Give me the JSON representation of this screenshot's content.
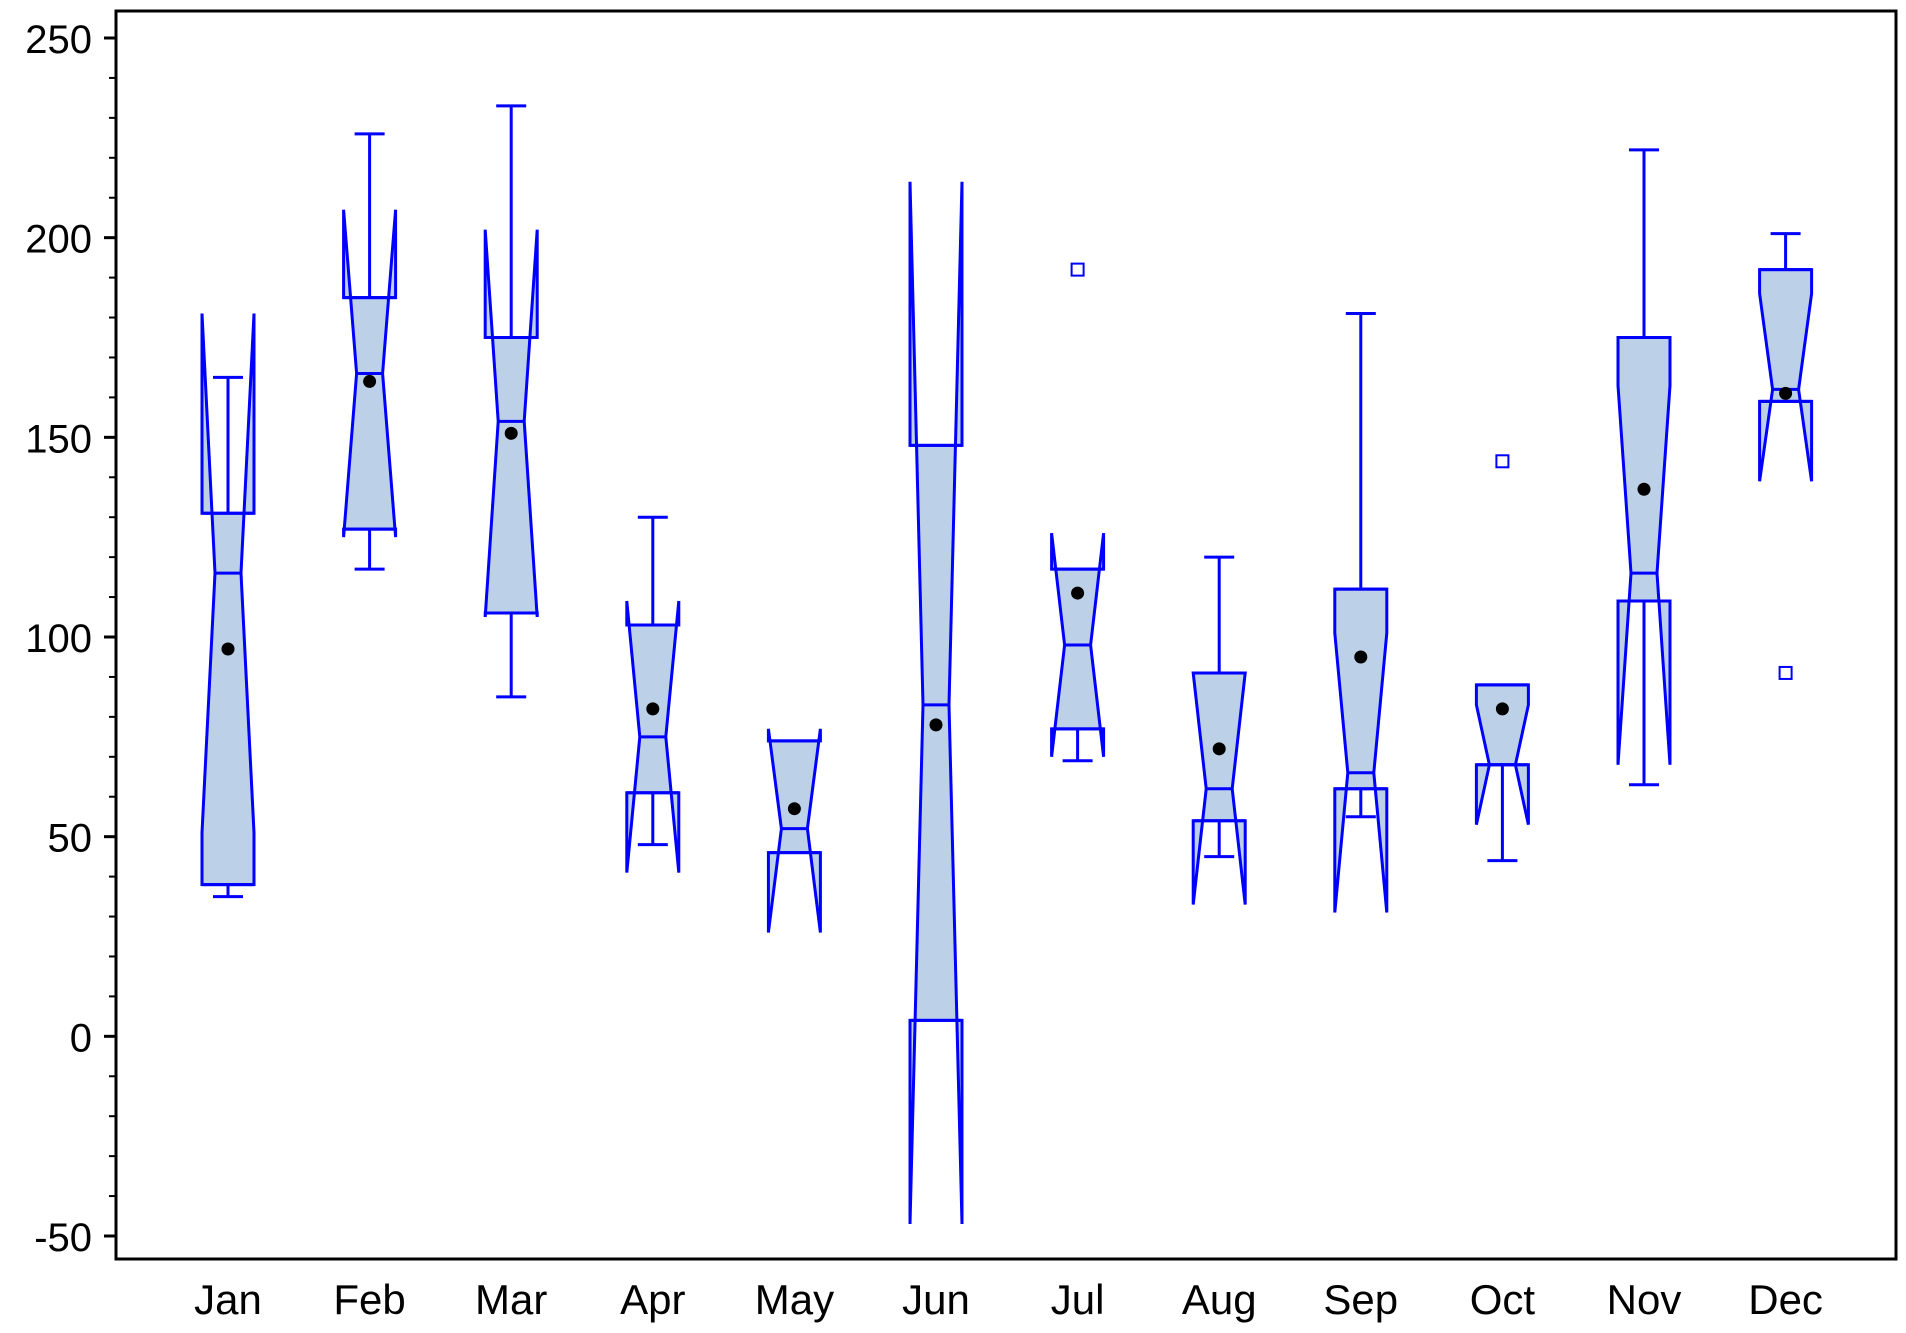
{
  "chart_data": {
    "type": "box",
    "title": "",
    "xlabel": "",
    "ylabel": "",
    "ylim": [
      -50,
      250
    ],
    "yticks": [
      -50,
      0,
      50,
      100,
      150,
      200,
      250
    ],
    "yticks_labels": [
      "-50",
      "0",
      "50",
      "100",
      "150",
      "200",
      "250"
    ],
    "minor_tick_step": 10,
    "grid": false,
    "categories": [
      "Jan",
      "Feb",
      "Mar",
      "Apr",
      "May",
      "Jun",
      "Jul",
      "Aug",
      "Sep",
      "Oct",
      "Nov",
      "Dec"
    ],
    "boxes": [
      {
        "min": 35,
        "q1": 38,
        "median": 116,
        "q3": 131,
        "max": 165,
        "mean": 97,
        "notch_lo": 51,
        "notch_hi": 181,
        "outliers": []
      },
      {
        "min": 117,
        "q1": 127,
        "median": 166,
        "q3": 185,
        "max": 226,
        "mean": 164,
        "notch_lo": 125,
        "notch_hi": 207,
        "outliers": []
      },
      {
        "min": 85,
        "q1": 106,
        "median": 154,
        "q3": 175,
        "max": 233,
        "mean": 151,
        "notch_lo": 105,
        "notch_hi": 202,
        "outliers": []
      },
      {
        "min": 48,
        "q1": 61,
        "median": 75,
        "q3": 103,
        "max": 130,
        "mean": 82,
        "notch_lo": 41,
        "notch_hi": 109,
        "outliers": []
      },
      {
        "min": 46,
        "q1": 46,
        "median": 52,
        "q3": 74,
        "max": 74,
        "mean": 57,
        "notch_lo": 26,
        "notch_hi": 77,
        "outliers": []
      },
      {
        "min": 4,
        "q1": 4,
        "median": 83,
        "q3": 148,
        "max": 148,
        "mean": 78,
        "notch_lo": -47,
        "notch_hi": 214,
        "outliers": []
      },
      {
        "min": 69,
        "q1": 77,
        "median": 98,
        "q3": 117,
        "max": 117,
        "mean": 111,
        "notch_lo": 70,
        "notch_hi": 126,
        "outliers": [
          192
        ]
      },
      {
        "min": 45,
        "q1": 54,
        "median": 62,
        "q3": 91,
        "max": 120,
        "mean": 72,
        "notch_lo": 33,
        "notch_hi": 91,
        "outliers": []
      },
      {
        "min": 55,
        "q1": 62,
        "median": 66,
        "q3": 112,
        "max": 181,
        "mean": 95,
        "notch_lo": 31,
        "notch_hi": 101,
        "outliers": []
      },
      {
        "min": 44,
        "q1": 68,
        "median": 68,
        "q3": 88,
        "max": 88,
        "mean": 82,
        "notch_lo": 53,
        "notch_hi": 83,
        "outliers": [
          144
        ]
      },
      {
        "min": 63,
        "q1": 109,
        "median": 116,
        "q3": 175,
        "max": 222,
        "mean": 137,
        "notch_lo": 68,
        "notch_hi": 163,
        "outliers": []
      },
      {
        "min": 159,
        "q1": 159,
        "median": 162,
        "q3": 192,
        "max": 201,
        "mean": 161,
        "notch_lo": 139,
        "notch_hi": 186,
        "outliers": [
          91
        ]
      }
    ],
    "colors": {
      "line": "#0000ff",
      "box_fill": "#bcd0e8",
      "mean_marker": "#000000",
      "axis": "#000000",
      "background": "#ffffff"
    }
  }
}
